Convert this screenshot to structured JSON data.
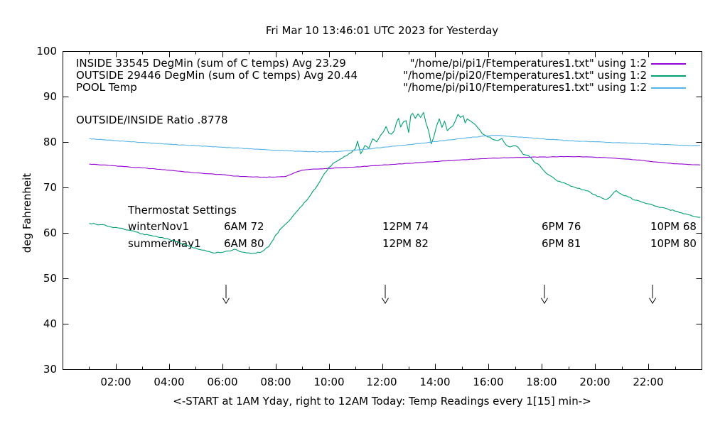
{
  "chart_data": {
    "type": "line",
    "title": "Fri Mar 10 13:46:01 UTC 2023 for Yesterday",
    "xlabel": "<-START at 1AM Yday, right to 12AM Today:  Temp Readings every 1[15] min->",
    "ylabel": "deg Fahrenheit",
    "xlim": [
      0,
      24
    ],
    "ylim": [
      30,
      100
    ],
    "grid": false,
    "x_ticks": {
      "hours": [
        2,
        4,
        6,
        8,
        10,
        12,
        14,
        16,
        18,
        20,
        22
      ],
      "labels": [
        "02:00",
        "04:00",
        "06:00",
        "08:00",
        "10:00",
        "12:00",
        "14:00",
        "16:00",
        "18:00",
        "20:00",
        "22:00"
      ],
      "minor_hours": [
        1,
        3,
        5,
        7,
        9,
        11,
        13,
        15,
        17,
        19,
        21,
        23
      ]
    },
    "y_ticks": [
      100,
      90,
      80,
      70,
      60,
      50,
      40,
      30
    ],
    "legend": {
      "position": "top-inside",
      "rows": [
        {
          "label": "INSIDE 33545 DegMin (sum of C temps) Avg 23.29",
          "file": "\"/home/pi/pi1/Ftemperatures1.txt\" using 1:2",
          "color": "#9400d3"
        },
        {
          "label": "OUTSIDE 29446 DegMin (sum of C temps) Avg 20.44",
          "file": "\"/home/pi/pi20/Ftemperatures1.txt\" using 1:2",
          "color": "#009e73"
        },
        {
          "label": "POOL Temp",
          "file": "\"/home/pi/pi10/Ftemperatures1.txt\" using 1:2",
          "color": "#56b4e9"
        }
      ]
    },
    "annotations": {
      "ratio": "OUTSIDE/INSIDE Ratio .8778",
      "thermostat": {
        "title": "Thermostat Settings",
        "rows": [
          {
            "name": "winterNov1",
            "c1": "6AM 72",
            "c2": "12PM 74",
            "c3": "6PM 76",
            "c4": "10PM 68"
          },
          {
            "name": "summerMay1",
            "c1": "6AM 80",
            "c2": "12PM 82",
            "c3": "6PM 81",
            "c4": "10PM 80"
          }
        ]
      }
    },
    "arrows": {
      "hours": [
        6.14,
        12.12,
        18.1,
        22.16
      ],
      "top_value": 48.6,
      "tip_value": 44.5
    },
    "series": [
      {
        "name": "INSIDE",
        "color": "#9400d3",
        "jitter": 0.05,
        "points": [
          [
            1.0,
            75.15
          ],
          [
            1.5,
            74.95
          ],
          [
            2.0,
            74.75
          ],
          [
            2.5,
            74.5
          ],
          [
            3.0,
            74.3
          ],
          [
            3.5,
            74.05
          ],
          [
            4.0,
            73.8
          ],
          [
            4.5,
            73.5
          ],
          [
            5.0,
            73.2
          ],
          [
            5.5,
            73.0
          ],
          [
            6.0,
            72.8
          ],
          [
            6.5,
            72.5
          ],
          [
            7.0,
            72.35
          ],
          [
            7.5,
            72.25
          ],
          [
            8.0,
            72.3
          ],
          [
            8.4,
            72.45
          ],
          [
            8.7,
            73.2
          ],
          [
            9.0,
            73.8
          ],
          [
            9.3,
            74.0
          ],
          [
            9.6,
            74.05
          ],
          [
            10.0,
            74.2
          ],
          [
            10.5,
            74.35
          ],
          [
            11.0,
            74.5
          ],
          [
            11.5,
            74.7
          ],
          [
            12.0,
            74.9
          ],
          [
            12.5,
            75.1
          ],
          [
            13.0,
            75.3
          ],
          [
            13.5,
            75.5
          ],
          [
            14.0,
            75.7
          ],
          [
            14.5,
            75.9
          ],
          [
            15.0,
            76.1
          ],
          [
            15.5,
            76.25
          ],
          [
            16.0,
            76.4
          ],
          [
            16.5,
            76.5
          ],
          [
            17.0,
            76.6
          ],
          [
            17.5,
            76.65
          ],
          [
            18.0,
            76.7
          ],
          [
            18.5,
            76.75
          ],
          [
            19.0,
            76.8
          ],
          [
            19.5,
            76.75
          ],
          [
            20.0,
            76.65
          ],
          [
            20.5,
            76.5
          ],
          [
            21.0,
            76.3
          ],
          [
            21.5,
            76.1
          ],
          [
            22.0,
            75.8
          ],
          [
            22.5,
            75.5
          ],
          [
            23.0,
            75.2
          ],
          [
            23.5,
            75.05
          ],
          [
            23.95,
            74.95
          ]
        ]
      },
      {
        "name": "OUTSIDE",
        "color": "#009e73",
        "jitter": 0.15,
        "points": [
          [
            1.0,
            62.1
          ],
          [
            1.25,
            61.9
          ],
          [
            1.5,
            61.8
          ],
          [
            1.75,
            61.4
          ],
          [
            2.0,
            61.2
          ],
          [
            2.25,
            61.0
          ],
          [
            2.5,
            60.6
          ],
          [
            2.75,
            60.2
          ],
          [
            3.0,
            59.8
          ],
          [
            3.25,
            59.5
          ],
          [
            3.5,
            59.3
          ],
          [
            3.75,
            59.0
          ],
          [
            4.0,
            58.6
          ],
          [
            4.25,
            58.1
          ],
          [
            4.5,
            57.6
          ],
          [
            4.75,
            57.1
          ],
          [
            5.0,
            56.7
          ],
          [
            5.25,
            56.2
          ],
          [
            5.5,
            55.9
          ],
          [
            5.75,
            55.6
          ],
          [
            6.0,
            55.7
          ],
          [
            6.25,
            56.0
          ],
          [
            6.45,
            56.4
          ],
          [
            6.65,
            55.9
          ],
          [
            7.0,
            55.6
          ],
          [
            7.25,
            55.5
          ],
          [
            7.5,
            55.9
          ],
          [
            7.75,
            57.0
          ],
          [
            8.0,
            59.5
          ],
          [
            8.25,
            61.2
          ],
          [
            8.5,
            62.6
          ],
          [
            8.75,
            64.4
          ],
          [
            9.0,
            66.0
          ],
          [
            9.25,
            67.8
          ],
          [
            9.5,
            69.8
          ],
          [
            9.75,
            72.2
          ],
          [
            10.0,
            74.4
          ],
          [
            10.25,
            75.6
          ],
          [
            10.5,
            76.4
          ],
          [
            10.75,
            77.4
          ],
          [
            11.0,
            78.5
          ],
          [
            11.08,
            80.2
          ],
          [
            11.2,
            77.4
          ],
          [
            11.35,
            79.2
          ],
          [
            11.5,
            78.6
          ],
          [
            11.65,
            80.7
          ],
          [
            11.8,
            80.0
          ],
          [
            11.95,
            81.5
          ],
          [
            12.05,
            82.2
          ],
          [
            12.15,
            83.4
          ],
          [
            12.25,
            82.0
          ],
          [
            12.35,
            81.7
          ],
          [
            12.45,
            82.4
          ],
          [
            12.55,
            84.4
          ],
          [
            12.62,
            85.2
          ],
          [
            12.7,
            83.3
          ],
          [
            12.8,
            84.4
          ],
          [
            12.9,
            84.7
          ],
          [
            13.0,
            82.1
          ],
          [
            13.08,
            85.9
          ],
          [
            13.15,
            86.3
          ],
          [
            13.25,
            85.2
          ],
          [
            13.35,
            86.2
          ],
          [
            13.45,
            85.4
          ],
          [
            13.56,
            86.5
          ],
          [
            13.65,
            84.2
          ],
          [
            13.75,
            82.4
          ],
          [
            13.85,
            79.6
          ],
          [
            13.95,
            81.2
          ],
          [
            14.05,
            83.6
          ],
          [
            14.15,
            85.1
          ],
          [
            14.25,
            83.2
          ],
          [
            14.35,
            84.6
          ],
          [
            14.45,
            82.5
          ],
          [
            14.55,
            83.1
          ],
          [
            14.65,
            83.5
          ],
          [
            14.75,
            84.6
          ],
          [
            14.85,
            86.1
          ],
          [
            14.95,
            85.4
          ],
          [
            15.05,
            85.8
          ],
          [
            15.12,
            84.2
          ],
          [
            15.2,
            85.1
          ],
          [
            15.3,
            84.7
          ],
          [
            15.45,
            84.1
          ],
          [
            15.6,
            83.1
          ],
          [
            15.75,
            81.9
          ],
          [
            15.9,
            81.4
          ],
          [
            16.05,
            81.1
          ],
          [
            16.2,
            80.5
          ],
          [
            16.35,
            80.3
          ],
          [
            16.5,
            80.8
          ],
          [
            16.65,
            79.4
          ],
          [
            16.8,
            78.9
          ],
          [
            16.95,
            79.2
          ],
          [
            17.1,
            78.9
          ],
          [
            17.3,
            77.3
          ],
          [
            17.5,
            77.0
          ],
          [
            17.7,
            75.7
          ],
          [
            17.85,
            75.2
          ],
          [
            18.0,
            74.2
          ],
          [
            18.25,
            72.8
          ],
          [
            18.5,
            71.8
          ],
          [
            18.75,
            71.1
          ],
          [
            19.0,
            70.6
          ],
          [
            19.25,
            70.0
          ],
          [
            19.5,
            69.5
          ],
          [
            19.75,
            69.2
          ],
          [
            20.0,
            68.4
          ],
          [
            20.25,
            67.7
          ],
          [
            20.45,
            67.4
          ],
          [
            20.65,
            68.5
          ],
          [
            20.8,
            69.3
          ],
          [
            21.0,
            68.5
          ],
          [
            21.25,
            67.9
          ],
          [
            21.5,
            67.2
          ],
          [
            21.75,
            66.8
          ],
          [
            22.0,
            66.4
          ],
          [
            22.25,
            65.9
          ],
          [
            22.5,
            65.6
          ],
          [
            22.75,
            65.2
          ],
          [
            23.0,
            64.8
          ],
          [
            23.25,
            64.4
          ],
          [
            23.5,
            64.0
          ],
          [
            23.75,
            63.6
          ],
          [
            23.95,
            63.4
          ]
        ]
      },
      {
        "name": "POOL",
        "color": "#56b4e9",
        "jitter": 0.06,
        "points": [
          [
            1.0,
            80.75
          ],
          [
            1.5,
            80.5
          ],
          [
            2.0,
            80.3
          ],
          [
            2.5,
            80.1
          ],
          [
            3.0,
            79.9
          ],
          [
            3.5,
            79.7
          ],
          [
            4.0,
            79.5
          ],
          [
            4.5,
            79.35
          ],
          [
            5.0,
            79.2
          ],
          [
            5.5,
            79.0
          ],
          [
            6.0,
            78.85
          ],
          [
            6.5,
            78.7
          ],
          [
            7.0,
            78.5
          ],
          [
            7.5,
            78.35
          ],
          [
            8.0,
            78.2
          ],
          [
            8.5,
            78.05
          ],
          [
            9.0,
            77.95
          ],
          [
            9.5,
            77.85
          ],
          [
            10.0,
            77.85
          ],
          [
            10.5,
            77.95
          ],
          [
            11.0,
            78.2
          ],
          [
            11.5,
            78.5
          ],
          [
            12.0,
            78.8
          ],
          [
            12.5,
            79.1
          ],
          [
            13.0,
            79.4
          ],
          [
            13.5,
            79.75
          ],
          [
            14.0,
            80.1
          ],
          [
            14.5,
            80.45
          ],
          [
            15.0,
            80.8
          ],
          [
            15.5,
            81.1
          ],
          [
            16.0,
            81.35
          ],
          [
            16.3,
            81.45
          ],
          [
            16.7,
            81.25
          ],
          [
            17.0,
            81.15
          ],
          [
            17.5,
            80.95
          ],
          [
            18.0,
            80.7
          ],
          [
            18.5,
            80.5
          ],
          [
            19.0,
            80.3
          ],
          [
            19.5,
            80.15
          ],
          [
            20.0,
            80.05
          ],
          [
            20.5,
            79.9
          ],
          [
            21.0,
            79.8
          ],
          [
            21.5,
            79.7
          ],
          [
            22.0,
            79.6
          ],
          [
            22.5,
            79.45
          ],
          [
            23.0,
            79.35
          ],
          [
            23.5,
            79.25
          ],
          [
            23.95,
            79.2
          ]
        ]
      }
    ]
  }
}
